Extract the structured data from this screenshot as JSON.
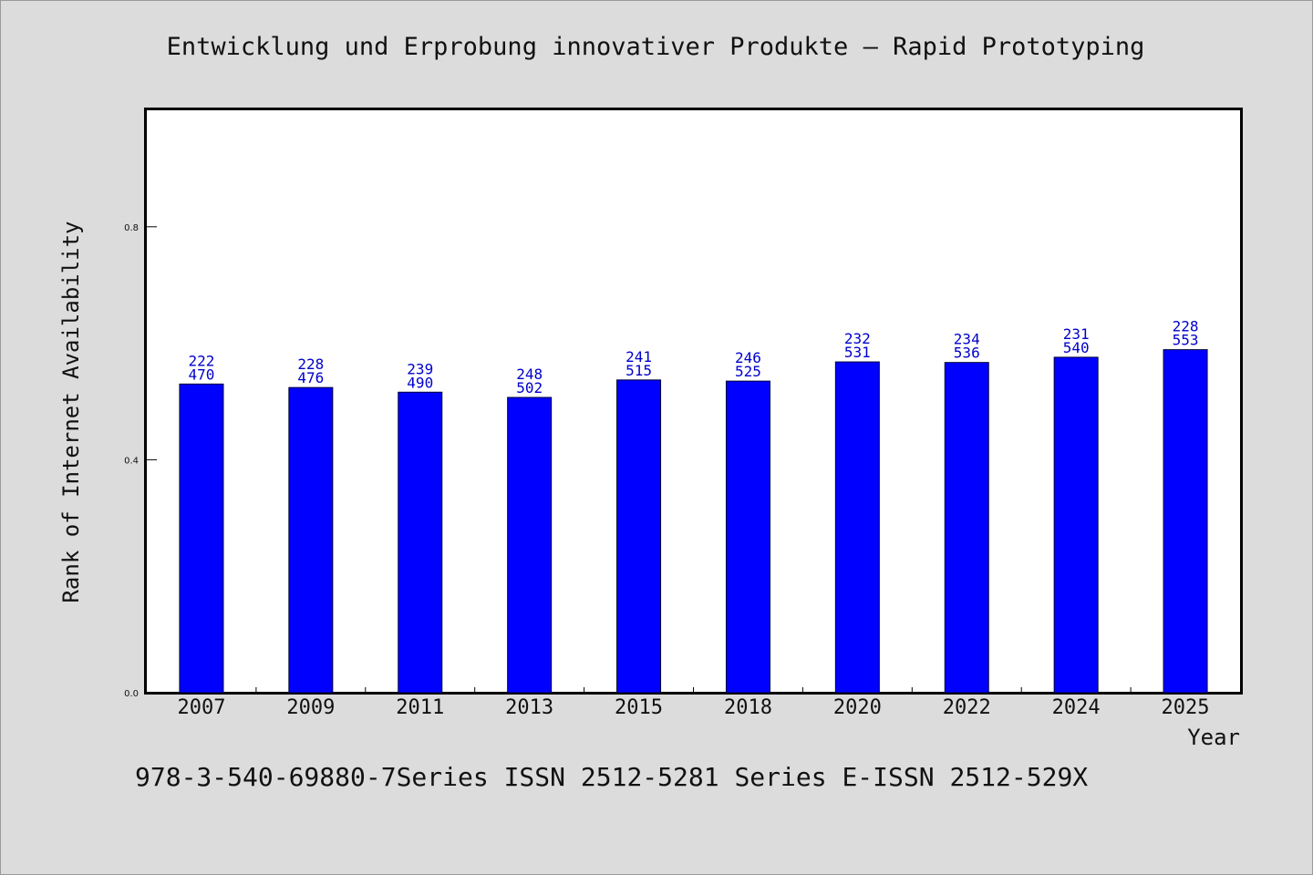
{
  "chart_data": {
    "type": "bar",
    "title": "Entwicklung und Erprobung innovativer Produkte – Rapid Prototyping",
    "xlabel": "Year",
    "ylabel": "Rank of Internet Availability",
    "categories": [
      "2007",
      "2009",
      "2011",
      "2013",
      "2015",
      "2018",
      "2020",
      "2022",
      "2024",
      "2025"
    ],
    "values": [
      0.53,
      0.524,
      0.516,
      0.507,
      0.537,
      0.535,
      0.568,
      0.567,
      0.576,
      0.589
    ],
    "bar_labels_top": [
      "222",
      "228",
      "239",
      "248",
      "241",
      "246",
      "232",
      "234",
      "231",
      "228"
    ],
    "bar_labels_bottom": [
      "470",
      "476",
      "490",
      "502",
      "515",
      "525",
      "531",
      "536",
      "540",
      "553"
    ],
    "ylim": [
      0.0,
      1.0
    ],
    "yticks": [
      0.0,
      0.4,
      0.8
    ],
    "ytick_labels": [
      "0.0",
      "0.4",
      "0.8"
    ],
    "bar_color": "#0000ff",
    "label_color": "#0000cc",
    "grid": false,
    "legend": "none"
  },
  "footer": {
    "text": "978-3-540-69880-7Series ISSN 2512-5281 Series E-ISSN 2512-529X"
  },
  "colors": {
    "background": "#dcdcdc",
    "plot_background": "#ffffff",
    "axis": "#000000"
  }
}
